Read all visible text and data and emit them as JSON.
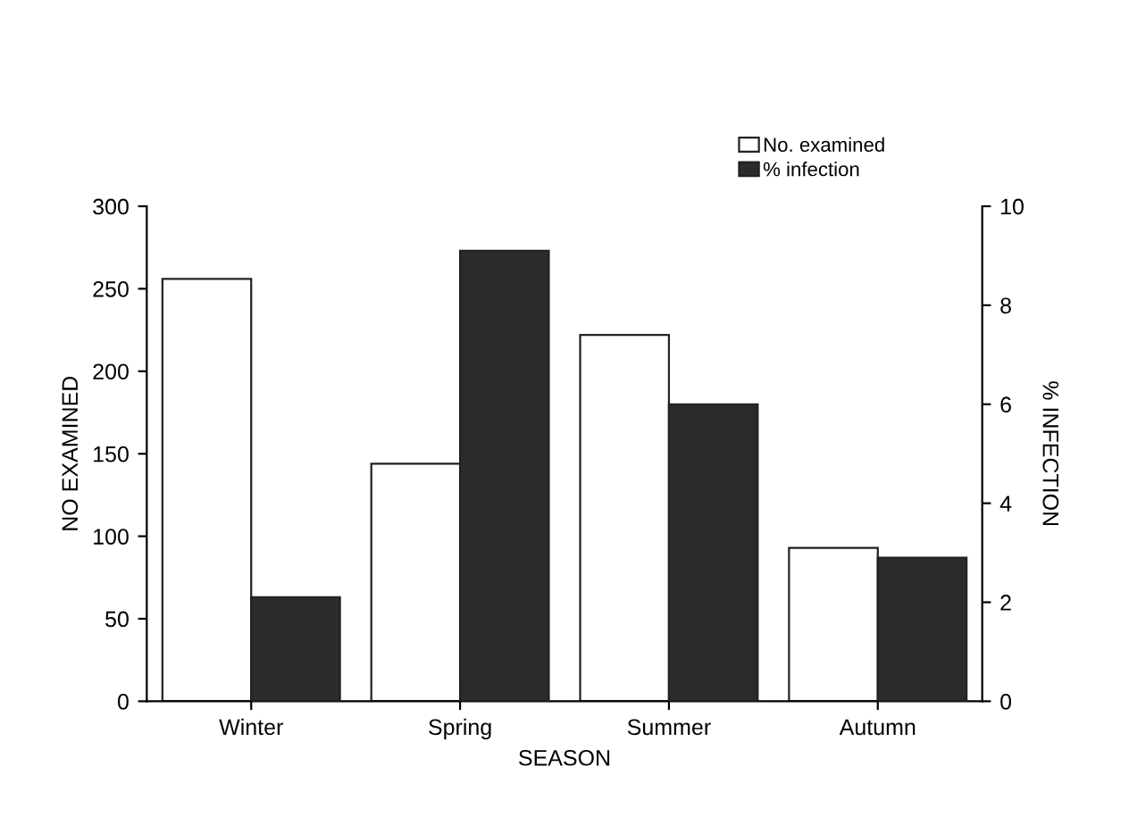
{
  "chart_data": {
    "type": "bar",
    "xlabel": "SEASON",
    "ylabel": "NO EXAMINED",
    "y2label": "% INFECTION",
    "categories": [
      "Winter",
      "Spring",
      "Summer",
      "Autumn"
    ],
    "series": [
      {
        "name": "No. examined",
        "color": "#ffffff",
        "values": [
          256,
          144,
          222,
          93
        ]
      },
      {
        "name": "% infection",
        "color": "#2b2b2b",
        "values": [
          2.1,
          9.1,
          6.0,
          2.9
        ],
        "axis": "y2"
      }
    ],
    "ylim": [
      0,
      300
    ],
    "yticks": [
      0,
      50,
      100,
      150,
      200,
      250,
      300
    ],
    "y2lim": [
      0,
      10
    ],
    "y2ticks": [
      0,
      2,
      4,
      6,
      8,
      10
    ],
    "legend": "top right",
    "grid": false
  }
}
